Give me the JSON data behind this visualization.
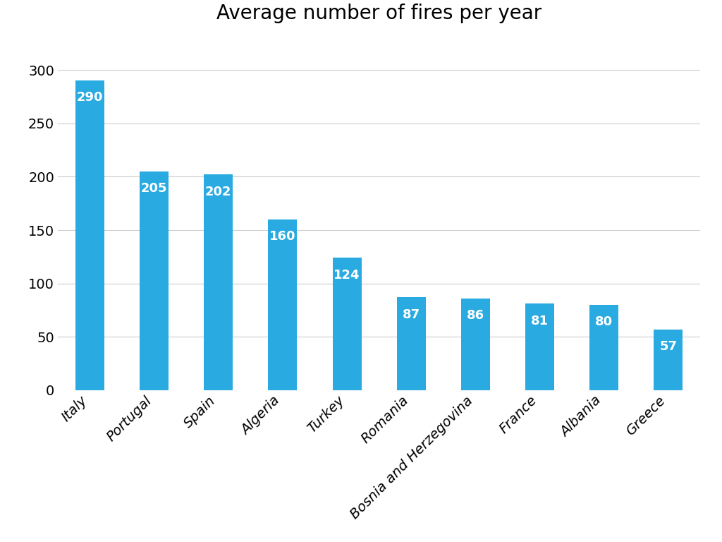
{
  "title": "Average number of fires per year",
  "categories": [
    "Italy",
    "Portugal",
    "Spain",
    "Algeria",
    "Turkey",
    "Romania",
    "Bosnia and Herzegovina",
    "France",
    "Albania",
    "Greece"
  ],
  "values": [
    290,
    205,
    202,
    160,
    124,
    87,
    86,
    81,
    80,
    57
  ],
  "bar_color": "#29ABE2",
  "label_color": "#ffffff",
  "title_fontsize": 20,
  "label_fontsize": 13,
  "tick_fontsize": 14,
  "ylabel_ticks": [
    0,
    50,
    100,
    150,
    200,
    250,
    300
  ],
  "ylim": [
    0,
    325
  ],
  "background_color": "#ffffff",
  "grid_color": "#cccccc",
  "bar_width": 0.45
}
